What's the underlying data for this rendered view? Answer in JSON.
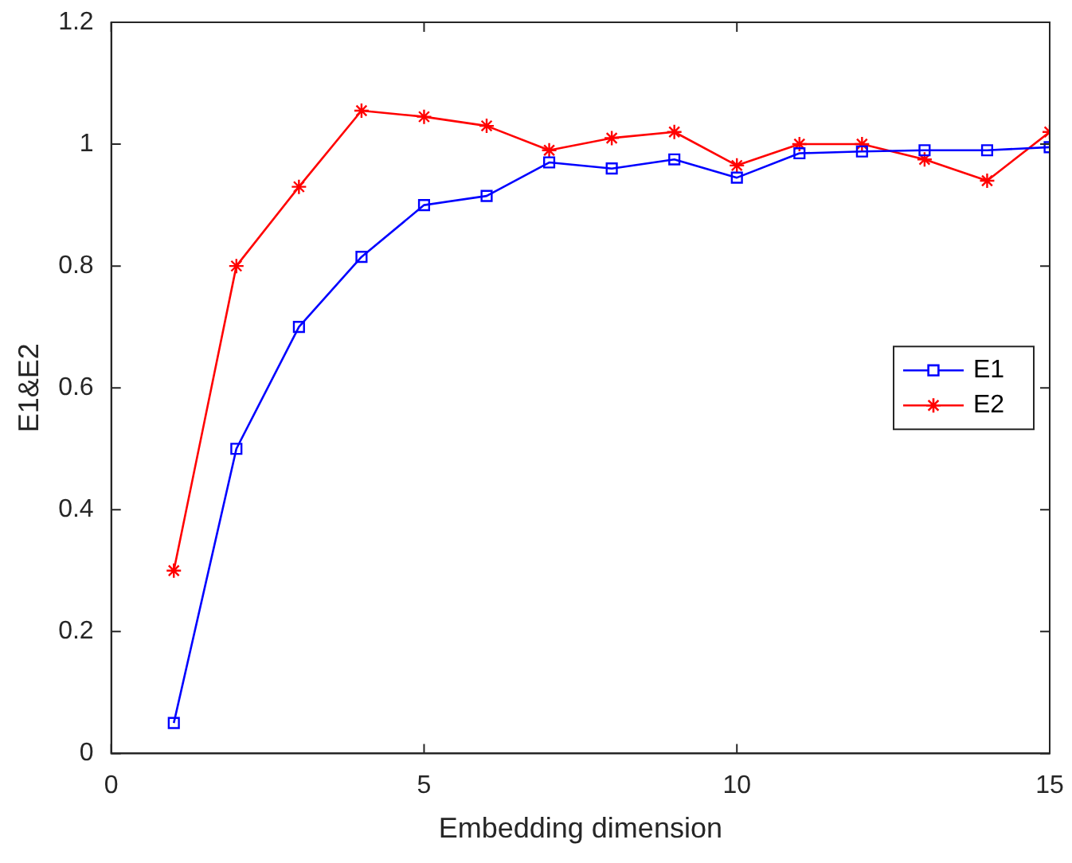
{
  "chart_data": {
    "type": "line",
    "xlabel": "Embedding dimension",
    "ylabel": "E1&E2",
    "x": [
      1,
      2,
      3,
      4,
      5,
      6,
      7,
      8,
      9,
      10,
      11,
      12,
      13,
      14,
      15
    ],
    "series": [
      {
        "name": "E1",
        "color": "#0000ff",
        "marker": "square",
        "values": [
          0.05,
          0.5,
          0.7,
          0.815,
          0.9,
          0.915,
          0.97,
          0.96,
          0.975,
          0.945,
          0.985,
          0.988,
          0.99,
          0.99,
          0.995
        ]
      },
      {
        "name": "E2",
        "color": "#ff0000",
        "marker": "cross",
        "values": [
          0.3,
          0.8,
          0.93,
          1.055,
          1.045,
          1.03,
          0.99,
          1.01,
          1.02,
          0.965,
          1.0,
          1.0,
          0.975,
          0.94,
          1.02
        ]
      }
    ],
    "xlim": [
      0,
      15
    ],
    "xticks": [
      0,
      5,
      10,
      15
    ],
    "ylim": [
      0,
      1.2
    ],
    "yticks": [
      0,
      0.2,
      0.4,
      0.6,
      0.8,
      1,
      1.2
    ],
    "grid": false,
    "legend": "right",
    "line_style": "solid"
  }
}
